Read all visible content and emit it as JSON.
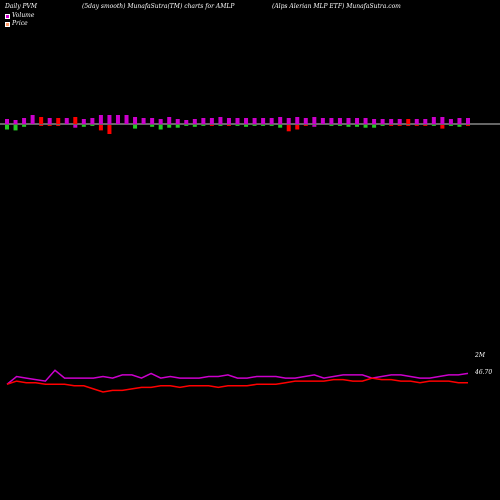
{
  "header": {
    "left": "Daily PVM",
    "middle": "(5day smooth) MunafaSutra(TM) charts for AMLP",
    "right": "(Alps Alerian MLP ETF) MunafaSutra.com"
  },
  "legend": {
    "items": [
      {
        "label": "Volume",
        "color": "#cc00cc"
      },
      {
        "label": "Price",
        "color": "#ff9966"
      }
    ]
  },
  "labels": {
    "volume_end": "2M",
    "price_end": "46.70"
  },
  "colors": {
    "background": "#000000",
    "bar_up": "#cc00cc",
    "bar_down": "#ff0000",
    "bar_green": "#22cc22",
    "volume_line": "#cc00cc",
    "price_line": "#ff0000",
    "axis": "#cccccc"
  },
  "chart_data": {
    "type": "bar",
    "description_series": "pvm bars above/below baseline, then volume and price lines",
    "pvm_bars": [
      {
        "up": 0.5,
        "down": 0.5,
        "up_color": "#cc00cc",
        "down_color": "#22cc22"
      },
      {
        "up": 0.4,
        "down": 0.6,
        "up_color": "#cc00cc",
        "down_color": "#22cc22"
      },
      {
        "up": 0.6,
        "down": 0.2,
        "up_color": "#cc00cc",
        "down_color": "#22cc22"
      },
      {
        "up": 0.9,
        "down": 0.0,
        "up_color": "#cc00cc",
        "down_color": "#ff0000"
      },
      {
        "up": 0.7,
        "down": 0.1,
        "up_color": "#ff0000",
        "down_color": "#ff0000"
      },
      {
        "up": 0.6,
        "down": 0.1,
        "up_color": "#cc00cc",
        "down_color": "#ff0000"
      },
      {
        "up": 0.6,
        "down": 0.1,
        "up_color": "#ff0000",
        "down_color": "#ff0000"
      },
      {
        "up": 0.6,
        "down": 0.0,
        "up_color": "#cc00cc",
        "down_color": "#ff0000"
      },
      {
        "up": 0.7,
        "down": 0.3,
        "up_color": "#ff0000",
        "down_color": "#cc00cc"
      },
      {
        "up": 0.5,
        "down": 0.2,
        "up_color": "#cc00cc",
        "down_color": "#22cc22"
      },
      {
        "up": 0.6,
        "down": 0.1,
        "up_color": "#cc00cc",
        "down_color": "#22cc22"
      },
      {
        "up": 0.9,
        "down": 0.6,
        "up_color": "#cc00cc",
        "down_color": "#ff0000"
      },
      {
        "up": 0.9,
        "down": 1.0,
        "up_color": "#cc00cc",
        "down_color": "#ff0000"
      },
      {
        "up": 0.9,
        "down": 0.0,
        "up_color": "#cc00cc",
        "down_color": "#ff0000"
      },
      {
        "up": 0.9,
        "down": 0.0,
        "up_color": "#cc00cc",
        "down_color": "#ff0000"
      },
      {
        "up": 0.7,
        "down": 0.4,
        "up_color": "#cc00cc",
        "down_color": "#22cc22"
      },
      {
        "up": 0.6,
        "down": 0.0,
        "up_color": "#cc00cc",
        "down_color": "#ff0000"
      },
      {
        "up": 0.6,
        "down": 0.2,
        "up_color": "#cc00cc",
        "down_color": "#22cc22"
      },
      {
        "up": 0.5,
        "down": 0.5,
        "up_color": "#cc00cc",
        "down_color": "#22cc22"
      },
      {
        "up": 0.7,
        "down": 0.3,
        "up_color": "#cc00cc",
        "down_color": "#22cc22"
      },
      {
        "up": 0.5,
        "down": 0.3,
        "up_color": "#cc00cc",
        "down_color": "#22cc22"
      },
      {
        "up": 0.4,
        "down": 0.1,
        "up_color": "#cc00cc",
        "down_color": "#22cc22"
      },
      {
        "up": 0.5,
        "down": 0.2,
        "up_color": "#cc00cc",
        "down_color": "#22cc22"
      },
      {
        "up": 0.6,
        "down": 0.1,
        "up_color": "#cc00cc",
        "down_color": "#22cc22"
      },
      {
        "up": 0.6,
        "down": 0.1,
        "up_color": "#cc00cc",
        "down_color": "#ff0000"
      },
      {
        "up": 0.7,
        "down": 0.1,
        "up_color": "#cc00cc",
        "down_color": "#22cc22"
      },
      {
        "up": 0.6,
        "down": 0.1,
        "up_color": "#cc00cc",
        "down_color": "#ff0000"
      },
      {
        "up": 0.6,
        "down": 0.1,
        "up_color": "#cc00cc",
        "down_color": "#22cc22"
      },
      {
        "up": 0.6,
        "down": 0.2,
        "up_color": "#cc00cc",
        "down_color": "#22cc22"
      },
      {
        "up": 0.6,
        "down": 0.1,
        "up_color": "#cc00cc",
        "down_color": "#22cc22"
      },
      {
        "up": 0.6,
        "down": 0.1,
        "up_color": "#cc00cc",
        "down_color": "#22cc22"
      },
      {
        "up": 0.6,
        "down": 0.1,
        "up_color": "#cc00cc",
        "down_color": "#22cc22"
      },
      {
        "up": 0.7,
        "down": 0.3,
        "up_color": "#cc00cc",
        "down_color": "#22cc22"
      },
      {
        "up": 0.6,
        "down": 0.7,
        "up_color": "#cc00cc",
        "down_color": "#ff0000"
      },
      {
        "up": 0.7,
        "down": 0.5,
        "up_color": "#cc00cc",
        "down_color": "#ff0000"
      },
      {
        "up": 0.6,
        "down": 0.1,
        "up_color": "#cc00cc",
        "down_color": "#ff0000"
      },
      {
        "up": 0.7,
        "down": 0.2,
        "up_color": "#cc00cc",
        "down_color": "#cc00cc"
      },
      {
        "up": 0.6,
        "down": 0.0,
        "up_color": "#cc00cc",
        "down_color": "#ff0000"
      },
      {
        "up": 0.6,
        "down": 0.1,
        "up_color": "#cc00cc",
        "down_color": "#22cc22"
      },
      {
        "up": 0.6,
        "down": 0.1,
        "up_color": "#cc00cc",
        "down_color": "#22cc22"
      },
      {
        "up": 0.6,
        "down": 0.2,
        "up_color": "#cc00cc",
        "down_color": "#22cc22"
      },
      {
        "up": 0.6,
        "down": 0.2,
        "up_color": "#cc00cc",
        "down_color": "#22cc22"
      },
      {
        "up": 0.6,
        "down": 0.3,
        "up_color": "#cc00cc",
        "down_color": "#22cc22"
      },
      {
        "up": 0.5,
        "down": 0.3,
        "up_color": "#cc00cc",
        "down_color": "#22cc22"
      },
      {
        "up": 0.5,
        "down": 0.1,
        "up_color": "#cc00cc",
        "down_color": "#22cc22"
      },
      {
        "up": 0.5,
        "down": 0.1,
        "up_color": "#cc00cc",
        "down_color": "#ff0000"
      },
      {
        "up": 0.5,
        "down": 0.1,
        "up_color": "#cc00cc",
        "down_color": "#ff0000"
      },
      {
        "up": 0.5,
        "down": 0.1,
        "up_color": "#ff0000",
        "down_color": "#ff0000"
      },
      {
        "up": 0.5,
        "down": 0.1,
        "up_color": "#cc00cc",
        "down_color": "#ff0000"
      },
      {
        "up": 0.5,
        "down": 0.1,
        "up_color": "#cc00cc",
        "down_color": "#ff0000"
      },
      {
        "up": 0.7,
        "down": 0.1,
        "up_color": "#cc00cc",
        "down_color": "#22cc22"
      },
      {
        "up": 0.7,
        "down": 0.4,
        "up_color": "#cc00cc",
        "down_color": "#ff0000"
      },
      {
        "up": 0.5,
        "down": 0.1,
        "up_color": "#cc00cc",
        "down_color": "#22cc22"
      },
      {
        "up": 0.6,
        "down": 0.2,
        "up_color": "#cc00cc",
        "down_color": "#22cc22"
      },
      {
        "up": 0.6,
        "down": 0.1,
        "up_color": "#cc00cc",
        "down_color": "#ff0000"
      }
    ],
    "volume_line": [
      35,
      30,
      31,
      32,
      33,
      26,
      31,
      31,
      31,
      31,
      30,
      31,
      29,
      29,
      31,
      28,
      31,
      30,
      31,
      31,
      31,
      30,
      30,
      29,
      31,
      31,
      30,
      30,
      30,
      31,
      31,
      30,
      29,
      31,
      30,
      29,
      29,
      29,
      31,
      30,
      29,
      29,
      30,
      31,
      31,
      30,
      29,
      29,
      28
    ],
    "price_line": [
      35,
      33,
      34,
      34,
      35,
      35,
      35,
      36,
      36,
      38,
      40,
      39,
      39,
      38,
      37,
      37,
      36,
      36,
      37,
      36,
      36,
      36,
      37,
      36,
      36,
      36,
      35,
      35,
      35,
      34,
      33,
      33,
      33,
      33,
      32,
      32,
      33,
      33,
      31,
      32,
      32,
      33,
      33,
      34,
      33,
      33,
      33,
      34,
      34
    ]
  }
}
